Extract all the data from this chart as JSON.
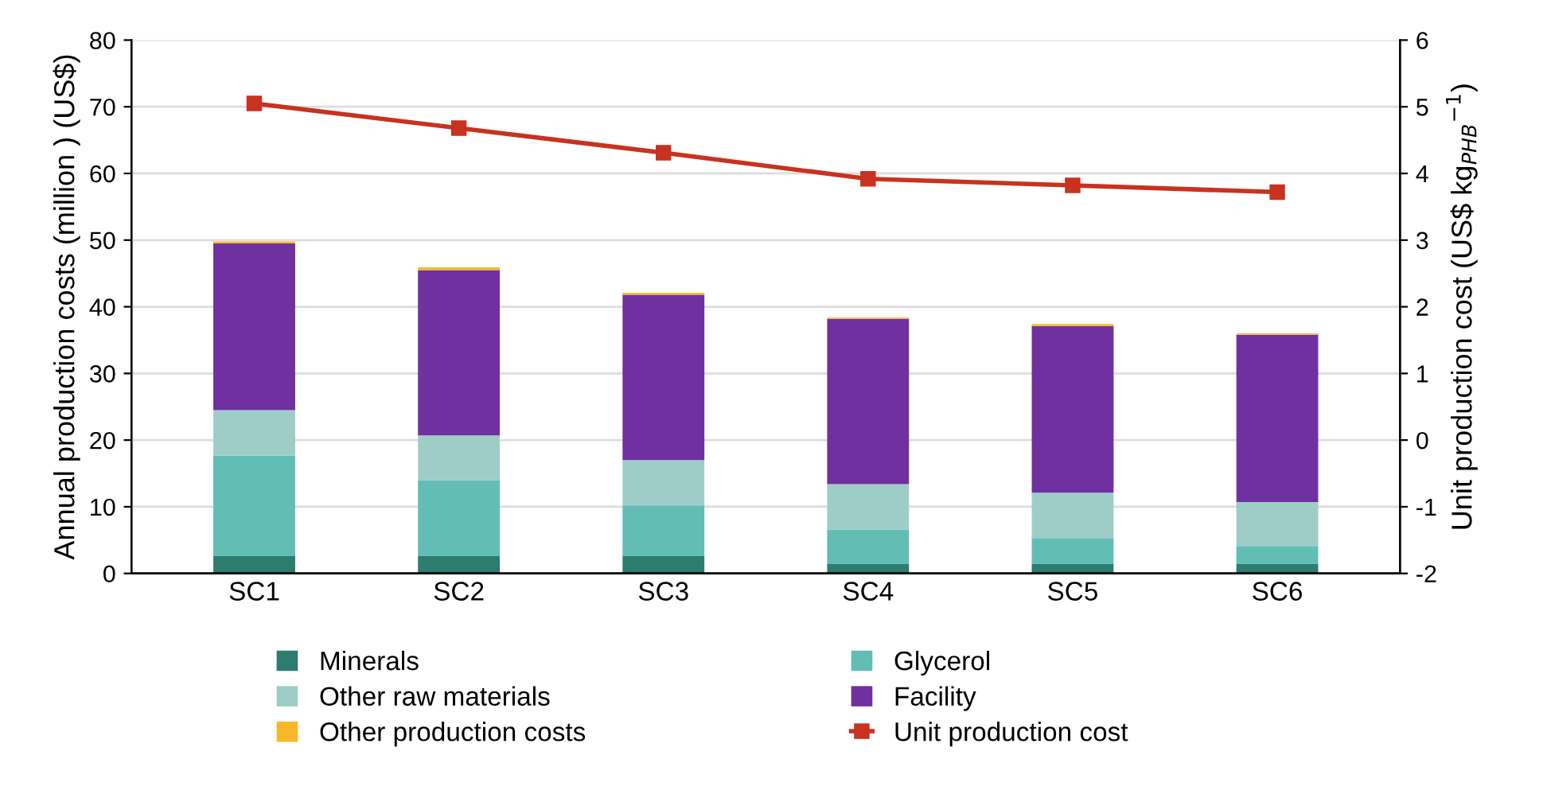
{
  "chart_data": {
    "type": "bar",
    "stacked": true,
    "categories": [
      "SC1",
      "SC2",
      "SC3",
      "SC4",
      "SC5",
      "SC6"
    ],
    "ylabel": "Annual production costs (million ) (US$)",
    "y2label": "Unit production cost (US$ kg$_{PHB}$$^{−1}$)",
    "ylim": [
      0,
      80
    ],
    "yticks": [
      0,
      10,
      20,
      30,
      40,
      50,
      60,
      70,
      80
    ],
    "y2lim": [
      -2,
      6
    ],
    "y2ticks": [
      -2,
      -1,
      0,
      1,
      2,
      3,
      4,
      5,
      6
    ],
    "grid": "y",
    "legend": "bottom",
    "series": [
      {
        "name": "Minerals",
        "color": "#2e7b6f",
        "values": [
          2.6,
          2.6,
          2.6,
          1.4,
          1.4,
          1.4
        ]
      },
      {
        "name": "Glycerol",
        "color": "#62bdb5",
        "values": [
          15.1,
          11.4,
          7.6,
          5.2,
          3.9,
          2.7
        ]
      },
      {
        "name": "Other raw materials",
        "color": "#9ecdc8",
        "values": [
          6.8,
          6.7,
          6.8,
          6.8,
          6.8,
          6.6
        ]
      },
      {
        "name": "Facility",
        "color": "#7030a0",
        "values": [
          25.0,
          24.8,
          24.8,
          24.8,
          25.0,
          25.1
        ]
      },
      {
        "name": "Other production costs",
        "color": "#f7b92a",
        "values": [
          0.3,
          0.4,
          0.3,
          0.2,
          0.3,
          0.2
        ]
      },
      {
        "name": "Unit production cost",
        "color": "#c8321f",
        "type": "line",
        "axis": "y2",
        "marker": "square",
        "values": [
          5.05,
          4.68,
          4.31,
          3.92,
          3.82,
          3.72
        ]
      }
    ]
  }
}
